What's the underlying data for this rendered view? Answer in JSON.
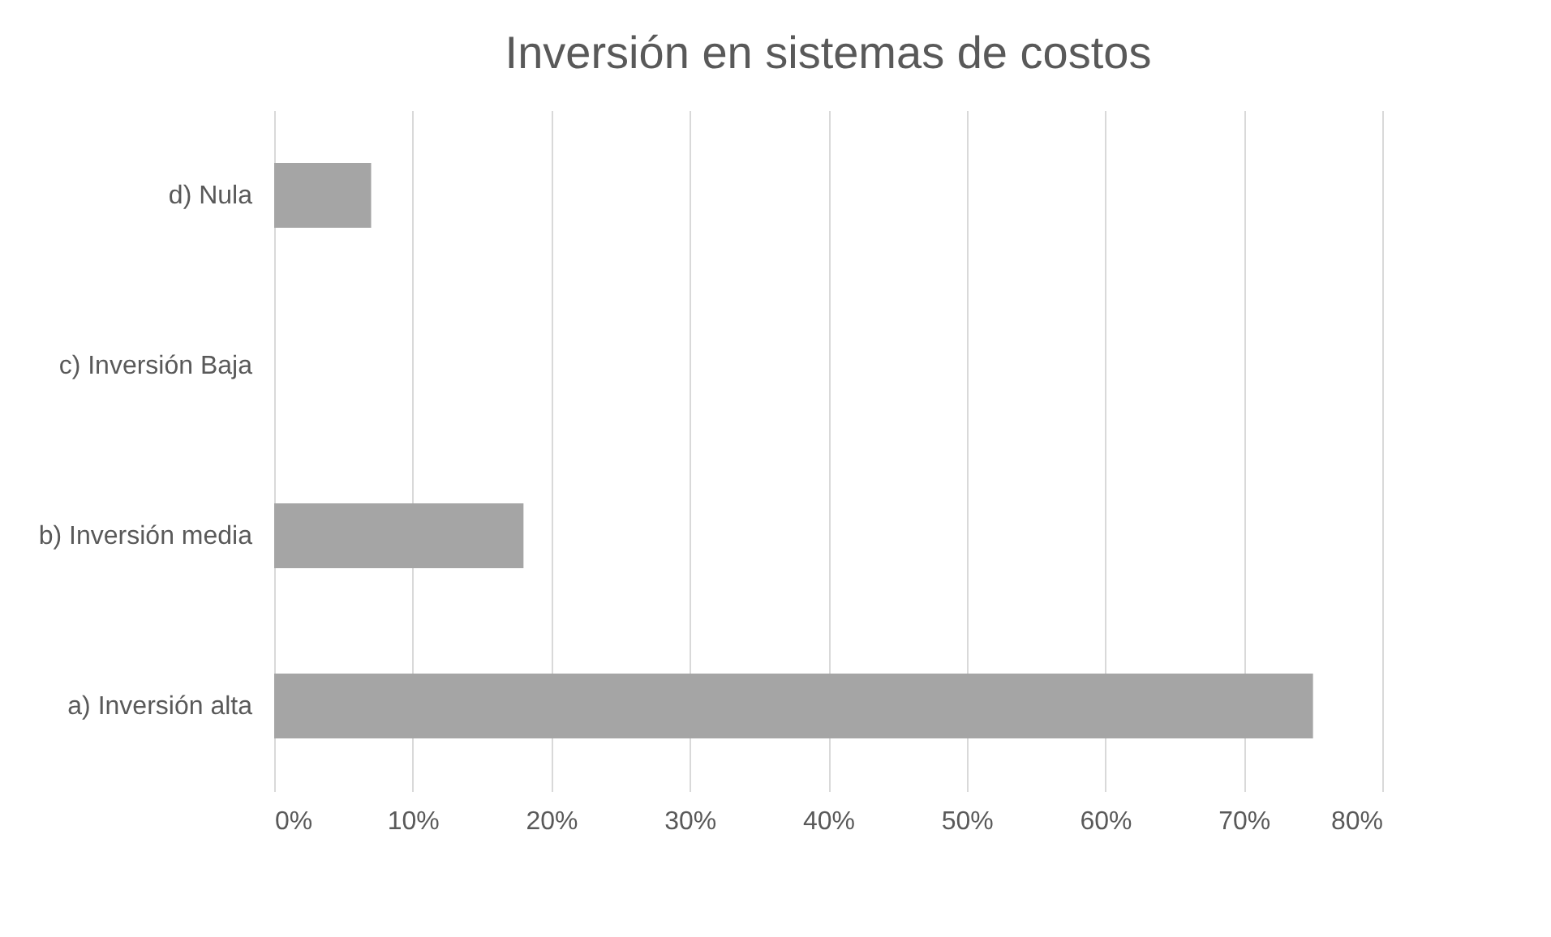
{
  "chart_data": {
    "type": "bar",
    "orientation": "horizontal",
    "title": "Inversión en sistemas de costos",
    "categories": [
      "d)    Nula",
      "c)    Inversión Baja",
      "b)    Inversión media",
      "a)    Inversión alta"
    ],
    "series": [
      {
        "color": "#a5a5a5",
        "values": [
          7,
          0,
          18,
          75
        ]
      }
    ],
    "xlim": [
      0,
      80
    ],
    "xticks": [
      {
        "value": 0,
        "label": "0%"
      },
      {
        "value": 10,
        "label": "10%"
      },
      {
        "value": 20,
        "label": "20%"
      },
      {
        "value": 30,
        "label": "30%"
      },
      {
        "value": 40,
        "label": "40%"
      },
      {
        "value": 50,
        "label": "50%"
      },
      {
        "value": 60,
        "label": "60%"
      },
      {
        "value": 70,
        "label": "70%"
      },
      {
        "value": 80,
        "label": "80%"
      }
    ],
    "grid": "x",
    "legend": false
  }
}
